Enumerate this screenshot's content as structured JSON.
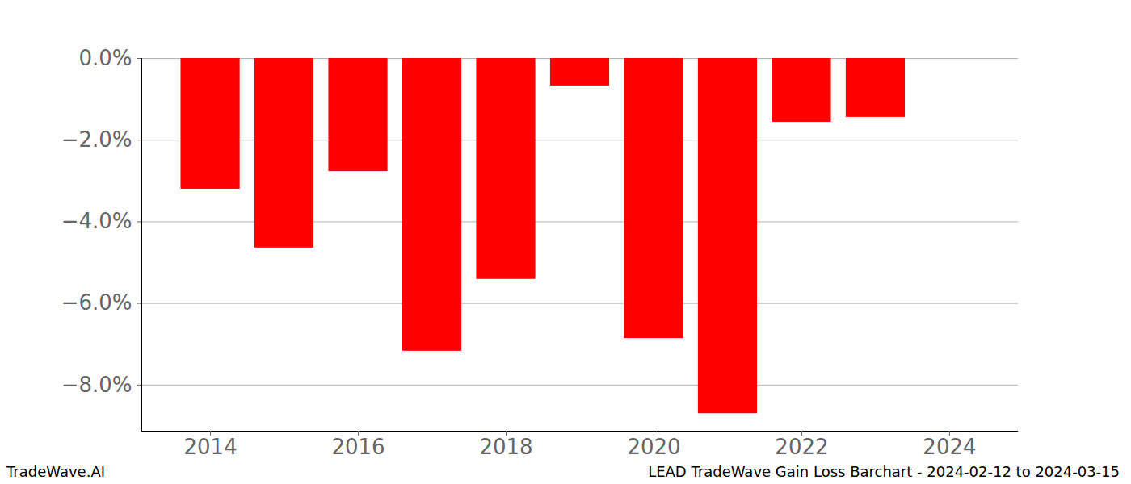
{
  "chart_data": {
    "type": "bar",
    "title": "LEAD TradeWave Gain Loss Barchart - 2024-02-12 to 2024-03-15",
    "annotations": [
      "TradeWave.AI"
    ],
    "x": [
      2014,
      2015,
      2016,
      2017,
      2018,
      2019,
      2020,
      2021,
      2022,
      2023
    ],
    "values": [
      -3.2,
      -4.64,
      -2.77,
      -7.17,
      -5.41,
      -0.67,
      -6.86,
      -8.7,
      -1.56,
      -1.44
    ],
    "color": "#ff0000",
    "xlim": [
      2013.07,
      2024.93
    ],
    "xticks": [
      2014,
      2016,
      2018,
      2020,
      2022,
      2024
    ],
    "ylim": [
      -9.13,
      0
    ],
    "yticks": [
      {
        "value": 0,
        "label": "0.0%"
      },
      {
        "value": -2,
        "label": "−2.0%"
      },
      {
        "value": -4,
        "label": "−4.0%"
      },
      {
        "value": -6,
        "label": "−6.0%"
      },
      {
        "value": -8,
        "label": "−8.0%"
      }
    ],
    "grid": true
  }
}
